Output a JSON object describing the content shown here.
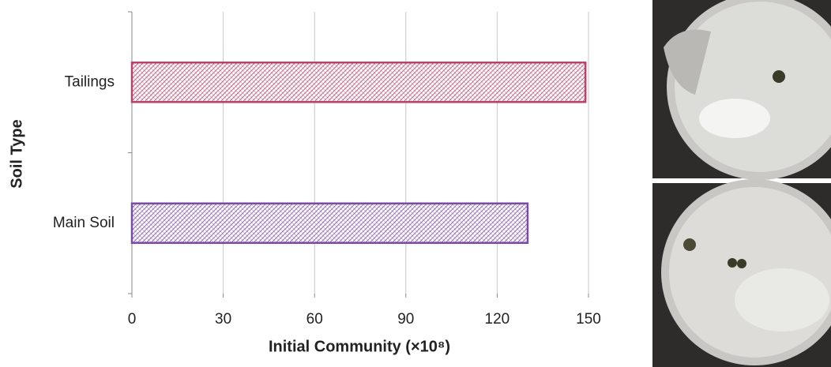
{
  "chart_data": {
    "type": "barh",
    "xlabel": "Initial Community  (×10⁸)",
    "ylabel": "Soil Type",
    "categories": [
      "Main Soil",
      "Tailings"
    ],
    "values": [
      130,
      149
    ],
    "colors": [
      "#7b4aa8",
      "#b8426b"
    ],
    "xlim": [
      0,
      150
    ],
    "xticks": [
      0,
      30,
      60,
      90,
      120,
      150
    ],
    "grid": true
  }
}
